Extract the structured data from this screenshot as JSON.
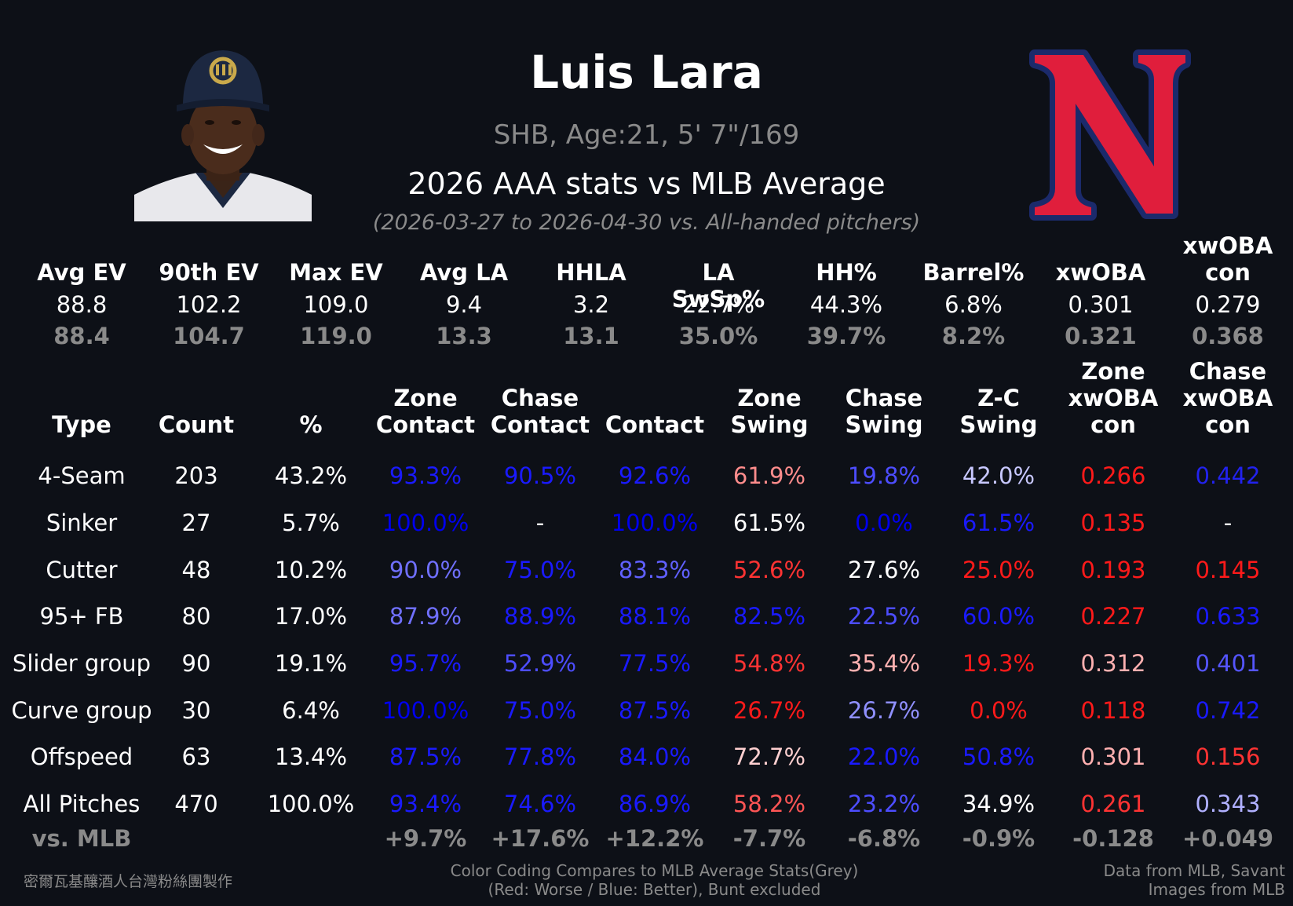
{
  "header": {
    "name": "Luis Lara",
    "info": "SHB, Age:21, 5' 7\"/169",
    "title": "2026 AAA stats vs MLB Average",
    "date_range": "(2026-03-27 to 2026-04-30 vs. All-handed pitchers)"
  },
  "summary": {
    "columns": [
      {
        "label": "Avg EV",
        "value": "88.8",
        "mlb": "88.4"
      },
      {
        "label": "90th EV",
        "value": "102.2",
        "mlb": "104.7"
      },
      {
        "label": "Max EV",
        "value": "109.0",
        "mlb": "119.0"
      },
      {
        "label": "Avg LA",
        "value": "9.4",
        "mlb": "13.3"
      },
      {
        "label": "HHLA",
        "value": "3.2",
        "mlb": "13.1"
      },
      {
        "label": "LA SwSp%",
        "value": "22.7%",
        "mlb": "35.0%"
      },
      {
        "label": "HH%",
        "value": "44.3%",
        "mlb": "39.7%"
      },
      {
        "label": "Barrel%",
        "value": "6.8%",
        "mlb": "8.2%"
      },
      {
        "label": "xwOBA",
        "value": "0.301",
        "mlb": "0.321"
      },
      {
        "label": "xwOBA\ncon",
        "value": "0.279",
        "mlb": "0.368"
      }
    ]
  },
  "table": {
    "headers": [
      "Type",
      "Count",
      "%",
      "Zone\nContact",
      "Chase\nContact",
      "Contact",
      "Zone\nSwing",
      "Chase\nSwing",
      "Z-C\nSwing",
      "Zone\nxwOBA\ncon",
      "Chase\nxwOBA\ncon"
    ],
    "rows": [
      {
        "cells": [
          "4-Seam",
          "203",
          "43.2%",
          "93.3%",
          "90.5%",
          "92.6%",
          "61.9%",
          "19.8%",
          "42.0%",
          "0.266",
          "0.442"
        ],
        "colors": [
          "#ffffff",
          "#ffffff",
          "#ffffff",
          "#1a1aff",
          "#1a1aff",
          "#1a1aff",
          "#ff8c8c",
          "#4d4dff",
          "#c8c8ff",
          "#ff1a1a",
          "#2222ee"
        ]
      },
      {
        "cells": [
          "Sinker",
          "27",
          "5.7%",
          "100.0%",
          "-",
          "100.0%",
          "61.5%",
          "0.0%",
          "61.5%",
          "0.135",
          "-"
        ],
        "colors": [
          "#ffffff",
          "#ffffff",
          "#ffffff",
          "#0000ee",
          "#ffffff",
          "#0000ee",
          "#ffffff",
          "#0000ee",
          "#1a1aff",
          "#ff1a1a",
          "#ffffff"
        ]
      },
      {
        "cells": [
          "Cutter",
          "48",
          "10.2%",
          "90.0%",
          "75.0%",
          "83.3%",
          "52.6%",
          "27.6%",
          "25.0%",
          "0.193",
          "0.145"
        ],
        "colors": [
          "#ffffff",
          "#ffffff",
          "#ffffff",
          "#7070ff",
          "#1a1aff",
          "#6060ff",
          "#ff3333",
          "#ffffff",
          "#ff1a1a",
          "#ff1a1a",
          "#ff1a1a"
        ]
      },
      {
        "cells": [
          "95+ FB",
          "80",
          "17.0%",
          "87.9%",
          "88.9%",
          "88.1%",
          "82.5%",
          "22.5%",
          "60.0%",
          "0.227",
          "0.633"
        ],
        "colors": [
          "#ffffff",
          "#ffffff",
          "#ffffff",
          "#7070ff",
          "#1a1aff",
          "#1a1aff",
          "#1a1aff",
          "#4d4dff",
          "#1a1aff",
          "#ff1a1a",
          "#1a1aff"
        ]
      },
      {
        "cells": [
          "Slider group",
          "90",
          "19.1%",
          "95.7%",
          "52.9%",
          "77.5%",
          "54.8%",
          "35.4%",
          "19.3%",
          "0.312",
          "0.401"
        ],
        "colors": [
          "#ffffff",
          "#ffffff",
          "#ffffff",
          "#1a1aff",
          "#4d4dff",
          "#1a1aff",
          "#ff3333",
          "#ffb0b0",
          "#ff1a1a",
          "#ffb0b0",
          "#5555ff"
        ]
      },
      {
        "cells": [
          "Curve group",
          "30",
          "6.4%",
          "100.0%",
          "75.0%",
          "87.5%",
          "26.7%",
          "26.7%",
          "0.0%",
          "0.118",
          "0.742"
        ],
        "colors": [
          "#ffffff",
          "#ffffff",
          "#ffffff",
          "#0000ee",
          "#1a1aff",
          "#1a1aff",
          "#ff1a1a",
          "#9090ff",
          "#ff1a1a",
          "#ff1a1a",
          "#1a1aff"
        ]
      },
      {
        "cells": [
          "Offspeed",
          "63",
          "13.4%",
          "87.5%",
          "77.8%",
          "84.0%",
          "72.7%",
          "22.0%",
          "50.8%",
          "0.301",
          "0.156"
        ],
        "colors": [
          "#ffffff",
          "#ffffff",
          "#ffffff",
          "#1a1aff",
          "#1a1aff",
          "#1a1aff",
          "#ffd0d0",
          "#1a1aff",
          "#1a1aff",
          "#ffb0b0",
          "#ff3333"
        ]
      },
      {
        "cells": [
          "All Pitches",
          "470",
          "100.0%",
          "93.4%",
          "74.6%",
          "86.9%",
          "58.2%",
          "23.2%",
          "34.9%",
          "0.261",
          "0.343"
        ],
        "colors": [
          "#ffffff",
          "#ffffff",
          "#ffffff",
          "#1a1aff",
          "#1a1aff",
          "#1a1aff",
          "#ff5555",
          "#4d4dff",
          "#ffffff",
          "#ff3333",
          "#b0b0ff"
        ]
      }
    ],
    "vs_mlb": [
      "vs. MLB",
      "",
      "",
      "+9.7%",
      "+17.6%",
      "+12.2%",
      "-7.7%",
      "-6.8%",
      "-0.9%",
      "-0.128",
      "+0.049"
    ]
  },
  "footer": {
    "left": "密爾瓦基釀酒人台灣粉絲團製作",
    "center_line1": "Color Coding Compares to MLB Average Stats(Grey)",
    "center_line2": "(Red: Worse / Blue: Better), Bunt excluded",
    "right_line1": "Data from MLB, Savant",
    "right_line2": "Images from MLB"
  },
  "colors": {
    "background": "#0d1017",
    "grey": "#8a8a8a",
    "logo_red": "#e01e3c",
    "logo_navy": "#1b2a6b",
    "cap_navy": "#1c2841",
    "cap_gold": "#c9a94b"
  }
}
